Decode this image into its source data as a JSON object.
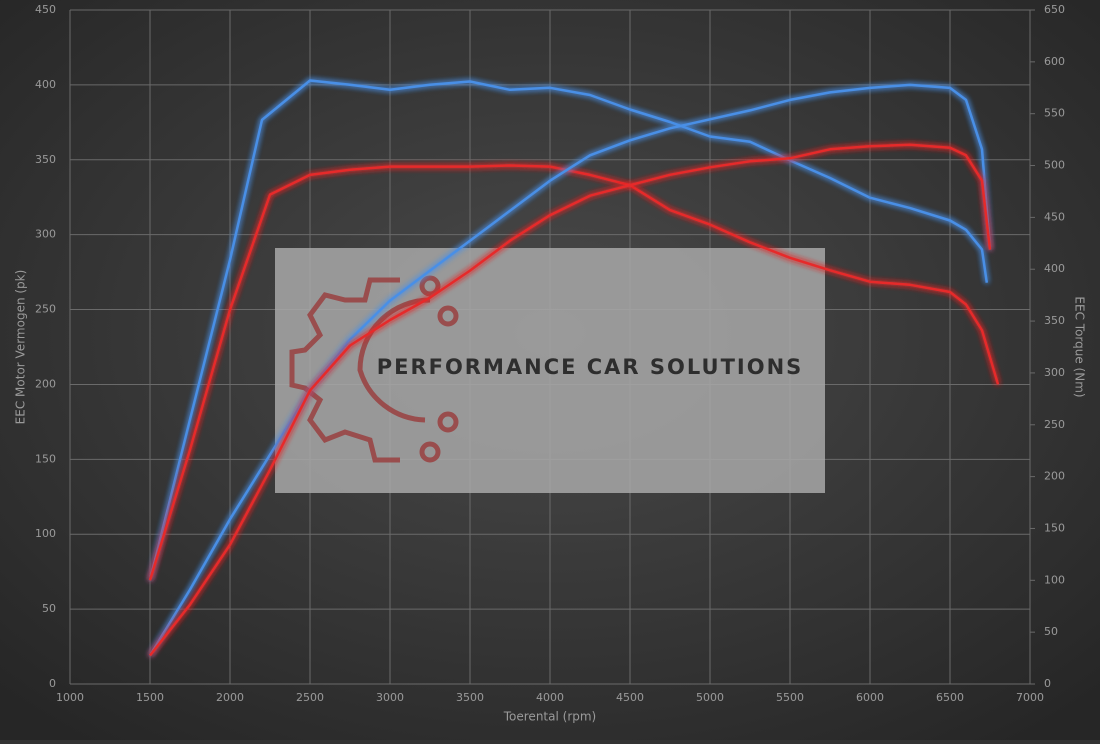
{
  "chart_data": {
    "type": "line",
    "watermark": "PERFORMANCE CAR SOLUTIONS",
    "x_label": "Toerental (rpm)",
    "y_label": "EEC Motor Vermogen (pk)",
    "y2_label": "EEC Torque (Nm)",
    "xlim": [
      1000,
      7000
    ],
    "xticks": [
      1000,
      1500,
      2000,
      2500,
      3000,
      3500,
      4000,
      4500,
      5000,
      5500,
      6000,
      6500,
      7000
    ],
    "ylim": [
      0,
      450
    ],
    "yticks": [
      0,
      50,
      100,
      150,
      200,
      250,
      300,
      350,
      400,
      450
    ],
    "y2lim": [
      0,
      650
    ],
    "y2ticks": [
      0,
      50,
      100,
      150,
      200,
      250,
      300,
      350,
      400,
      450,
      500,
      550,
      600,
      650
    ],
    "grid": true,
    "series": [
      {
        "color": "#4a8fe6",
        "axis": "y2",
        "x": [
          1500,
          1750,
          2000,
          2200,
          2500,
          2750,
          3000,
          3250,
          3500,
          3750,
          4000,
          4250,
          4500,
          4750,
          5000,
          5250,
          5500,
          5750,
          6000,
          6250,
          6500,
          6600,
          6700,
          6730
        ],
        "values": [
          100,
          255,
          409,
          544,
          582,
          578,
          573,
          578,
          581,
          573,
          575,
          568,
          554,
          542,
          528,
          523,
          505,
          488,
          469,
          459,
          447,
          438,
          419,
          387
        ]
      },
      {
        "color": "#e62a2a",
        "axis": "y2",
        "x": [
          1500,
          1750,
          2000,
          2250,
          2500,
          2750,
          3000,
          3500,
          3750,
          4000,
          4250,
          4500,
          4750,
          5000,
          5250,
          5500,
          5750,
          6000,
          6250,
          6500,
          6600,
          6700,
          6800
        ],
        "values": [
          100,
          226,
          361,
          472,
          491,
          496,
          499,
          499,
          500,
          499,
          491,
          481,
          457,
          443,
          426,
          411,
          399,
          388,
          385,
          378,
          366,
          341,
          289
        ]
      },
      {
        "color": "#4a8fe6",
        "x": [
          1500,
          1750,
          2000,
          2250,
          2500,
          2750,
          3000,
          3250,
          3500,
          3750,
          4000,
          4250,
          4500,
          4750,
          5000,
          5250,
          5500,
          5750,
          6000,
          6250,
          6500,
          6600,
          6700,
          6750
        ],
        "values": [
          19,
          63,
          110,
          153,
          196,
          230,
          256,
          276,
          296,
          316,
          336,
          353,
          363,
          371,
          377,
          383,
          390,
          395,
          398,
          400,
          398,
          390,
          357,
          290
        ]
      },
      {
        "color": "#e62a2a",
        "x": [
          1500,
          1750,
          2000,
          2250,
          2500,
          2750,
          3000,
          3250,
          3500,
          3750,
          4000,
          4250,
          4500,
          4750,
          5000,
          5250,
          5500,
          5750,
          6000,
          6250,
          6500,
          6600,
          6700,
          6750
        ],
        "values": [
          19,
          53,
          93,
          143,
          196,
          226,
          243,
          258,
          276,
          296,
          313,
          326,
          333,
          340,
          345,
          349,
          351,
          357,
          359,
          360,
          358,
          353,
          336,
          290
        ]
      }
    ]
  }
}
